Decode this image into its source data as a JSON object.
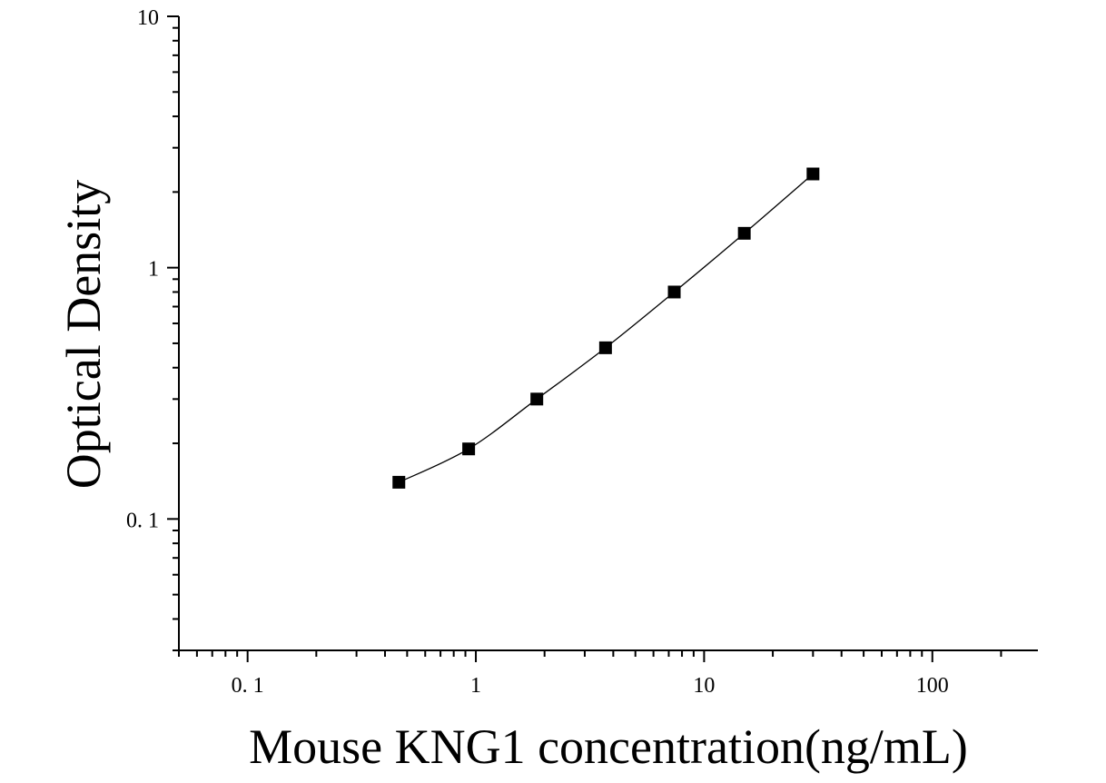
{
  "chart_data": {
    "type": "scatter",
    "xlabel": "Mouse KNG1 concentration(ng/mL)",
    "ylabel": "Optical Density",
    "x_scale": "log",
    "y_scale": "log",
    "xlim": [
      0.05,
      290
    ],
    "ylim": [
      0.03,
      10
    ],
    "x_ticks": [
      {
        "value": 0.1,
        "label": "0. 1"
      },
      {
        "value": 1,
        "label": "1"
      },
      {
        "value": 10,
        "label": "10"
      },
      {
        "value": 100,
        "label": "100"
      }
    ],
    "y_ticks": [
      {
        "value": 10,
        "label": "10"
      },
      {
        "value": 1,
        "label": "1"
      },
      {
        "value": 0.1,
        "label": "0. 1"
      }
    ],
    "grid": false,
    "legend": "none",
    "fit_curve": true,
    "marker": "square",
    "series": [
      {
        "x": [
          0.46,
          0.93,
          1.85,
          3.7,
          7.4,
          15,
          30
        ],
        "y": [
          0.14,
          0.19,
          0.3,
          0.48,
          0.8,
          1.37,
          2.36
        ]
      }
    ],
    "colors": {
      "marker": "#000000",
      "line": "#000000",
      "axis": "#000000"
    }
  }
}
